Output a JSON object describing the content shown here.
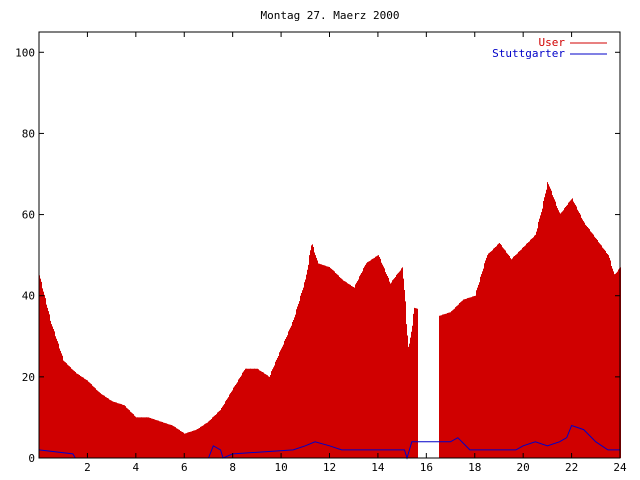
{
  "chart_data": {
    "type": "bar",
    "title": "Montag 27. Maerz 2000",
    "xlim": [
      0,
      24
    ],
    "ylim": [
      0,
      105
    ],
    "x_ticks": [
      2,
      4,
      6,
      8,
      10,
      12,
      14,
      16,
      18,
      20,
      22,
      24
    ],
    "y_ticks": [
      0,
      20,
      40,
      60,
      80,
      100
    ],
    "legend_position": "top-right",
    "grid": false,
    "series_colors": [
      "#d00000",
      "#0000c8"
    ],
    "series": [
      {
        "name": "User",
        "type": "bar",
        "x": [
          0,
          0.5,
          1,
          1.5,
          2,
          2.5,
          3,
          3.5,
          4,
          4.5,
          5,
          5.5,
          6,
          6.5,
          7,
          7.5,
          8,
          8.5,
          9,
          9.5,
          10,
          10.5,
          11,
          11.25,
          11.5,
          12,
          12.5,
          13,
          13.5,
          14,
          14.5,
          15,
          15.25,
          15.5,
          16.5,
          17,
          17.5,
          18,
          18.5,
          19,
          19.5,
          20,
          20.5,
          20.75,
          21,
          21.5,
          22,
          22.5,
          23,
          23.5,
          23.75,
          24
        ],
        "values": [
          45,
          33,
          24,
          21,
          19,
          16,
          14,
          13,
          10,
          10,
          9,
          8,
          6,
          7,
          9,
          12,
          17,
          22,
          22,
          20,
          27,
          34,
          44,
          53,
          48,
          47,
          44,
          42,
          48,
          50,
          43,
          47,
          26,
          37,
          35,
          36,
          39,
          40,
          50,
          53,
          49,
          52,
          55,
          61,
          68,
          60,
          64,
          58,
          54,
          50,
          45,
          47
        ]
      },
      {
        "name": "Stuttgarter",
        "type": "line",
        "x": [
          0,
          1.4,
          1.5,
          7,
          7.2,
          7.5,
          7.6,
          8,
          10.5,
          11,
          11.4,
          12,
          12.5,
          13,
          14,
          15.1,
          15.2,
          15.4,
          17,
          17.3,
          17.8,
          18,
          19.7,
          20,
          20.5,
          21,
          21.5,
          21.8,
          22,
          22.5,
          23,
          23.5,
          24
        ],
        "values": [
          2,
          1,
          0,
          0,
          3,
          2,
          0,
          1,
          2,
          3,
          4,
          3,
          2,
          2,
          2,
          2,
          0,
          4,
          4,
          5,
          2,
          2,
          2,
          3,
          4,
          3,
          4,
          5,
          8,
          7,
          4,
          2,
          2
        ]
      }
    ]
  }
}
